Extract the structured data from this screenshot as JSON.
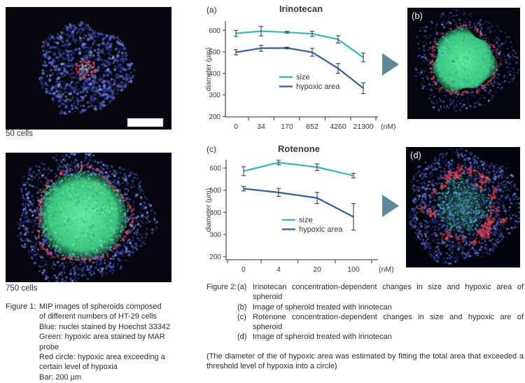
{
  "left_panel": {
    "image1_label": "50 cells",
    "image2_label": "750 cells",
    "figure1": {
      "prefix": "Figure 1:",
      "body": "MIP images of spheroids composed\nof different numbers of HT-29 cells\nBlue: nuclei stained by Hoechst 33342\nGreen: hypoxic area stained by MAR\nprobe\nRed circle: hypoxic area exceeding a\ncertain level of hypoxia\nBar: 200 µm"
    }
  },
  "right_panel": {
    "image_b_label": "(b)",
    "image_d_label": "(d)"
  },
  "figure2": {
    "prefix": "Figure 2:",
    "items": [
      {
        "label": "(a)",
        "text": "Irinotecan concentration-dependent changes in size and hypoxic area of spheroid"
      },
      {
        "label": "(b)",
        "text": "Image of spheroid treated with irinotecan"
      },
      {
        "label": "(c)",
        "text": "Rotenone concentration-dependent changes in size and hypoxic are of spheroid"
      },
      {
        "label": "(d)",
        "text": "Image of spheroid treated with irinotecan"
      }
    ],
    "note": "(The diameter of the of hypoxic area was estimated by fitting the total area that exceeded a threshold level of hypoxia into a circle)"
  },
  "chart_data": [
    {
      "type": "line",
      "panel_label": "(a)",
      "title": "Irinotecan",
      "ylabel": "diameter (µm)",
      "x_unit_label": "(nM)",
      "categories": [
        "0",
        "34",
        "170",
        "852",
        "4260",
        "21300"
      ],
      "yticks": [
        200,
        300,
        400,
        500,
        600
      ],
      "ylim": [
        200,
        650
      ],
      "grid": false,
      "legend_position": "center-left",
      "series": [
        {
          "name": "size",
          "color": "#35b7c1",
          "values": [
            586,
            596,
            591,
            584,
            558,
            474
          ],
          "errors": [
            14,
            22,
            4,
            12,
            17,
            20
          ]
        },
        {
          "name": "hypoxic area",
          "color": "#2e5fa6",
          "values": [
            498,
            517,
            518,
            498,
            423,
            331
          ],
          "errors": [
            12,
            14,
            4,
            18,
            23,
            25
          ]
        }
      ]
    },
    {
      "type": "line",
      "panel_label": "(c)",
      "title": "Rotenone",
      "ylabel": "diameter (µm)",
      "x_unit_label": "(nM)",
      "categories": [
        "0",
        "4",
        "20",
        "100"
      ],
      "yticks": [
        200,
        300,
        400,
        500,
        600
      ],
      "ylim": [
        200,
        650
      ],
      "grid": false,
      "legend_position": "center-left",
      "series": [
        {
          "name": "size",
          "color": "#35b7c1",
          "values": [
            586,
            625,
            604,
            566
          ],
          "errors": [
            20,
            10,
            15,
            10
          ]
        },
        {
          "name": "hypoxic area",
          "color": "#2e5fa6",
          "values": [
            507,
            490,
            465,
            380
          ],
          "errors": [
            10,
            18,
            25,
            60
          ]
        }
      ]
    }
  ],
  "colors": {
    "size_line": "#35b7c1",
    "hypoxic_line": "#2e5fa6",
    "arrow": "#5c8a9a",
    "axis": "#555555",
    "text": "#2e2e2e"
  }
}
